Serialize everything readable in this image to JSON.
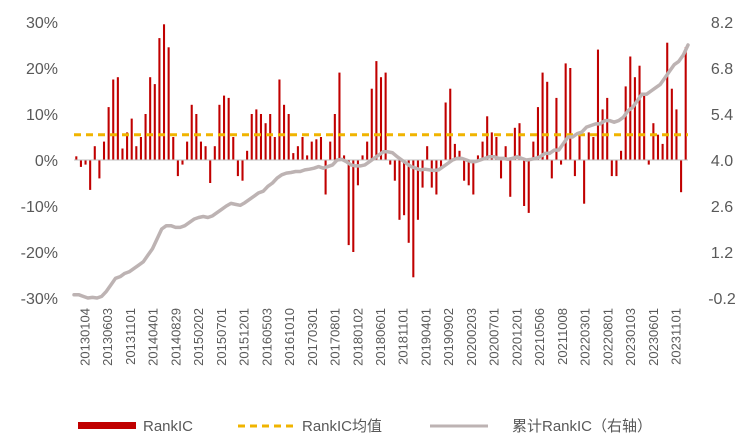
{
  "chart_data": {
    "type": "bar",
    "title": "",
    "colors": {
      "bar": "#c00000",
      "mean_line": "#f0b400",
      "cum_line": "#bdb3b3",
      "tick_text": "#595959",
      "axis": "#bfbfbf"
    },
    "y_left": {
      "range": [
        -30,
        30
      ],
      "ticks": [
        30,
        20,
        10,
        0,
        -10,
        -20,
        -30
      ],
      "tick_labels": [
        "30%",
        "20%",
        "10%",
        "0%",
        "-10%",
        "-20%",
        "-30%"
      ]
    },
    "y_right": {
      "range": [
        -0.2,
        8.2
      ],
      "ticks": [
        8.2,
        6.8,
        5.4,
        4.0,
        2.6,
        1.2,
        -0.2
      ],
      "tick_labels": [
        "8.2",
        "6.8",
        "5.4",
        "4.0",
        "2.6",
        "1.2",
        "-0.2"
      ]
    },
    "x_tick_labels": [
      "20130104",
      "20130603",
      "20131101",
      "20140401",
      "20140829",
      "20150202",
      "20150701",
      "20151201",
      "20160503",
      "20161010",
      "20170301",
      "20170801",
      "20180102",
      "20180601",
      "20181101",
      "20190401",
      "20190902",
      "20200203",
      "20200701",
      "20201201",
      "20210506",
      "20211008",
      "20220301",
      "20220801",
      "20230103",
      "20230601",
      "20231101"
    ],
    "series": [
      {
        "name": "RankIC",
        "type": "bar",
        "values": [
          0.8,
          -1.5,
          -1.0,
          -6.5,
          3.0,
          -4.0,
          4.0,
          11.5,
          17.5,
          18.0,
          2.5,
          6.0,
          9.0,
          3.0,
          5.0,
          10.0,
          18.0,
          16.5,
          26.5,
          29.5,
          24.5,
          5.0,
          -3.5,
          -1.0,
          4.0,
          12.0,
          10.0,
          4.0,
          3.0,
          -5.0,
          3.0,
          12.0,
          14.0,
          13.5,
          5.0,
          -3.5,
          -4.5,
          2.0,
          10.0,
          11.0,
          10.0,
          8.0,
          10.0,
          5.0,
          17.5,
          12.0,
          10.0,
          1.5,
          3.0,
          5.0,
          1.0,
          4.0,
          4.5,
          5.0,
          -7.5,
          4.0,
          10.0,
          19.0,
          1.0,
          -18.5,
          -20.0,
          -5.5,
          1.0,
          4.0,
          15.5,
          21.5,
          18.0,
          19.0,
          -1.0,
          -4.5,
          -13.0,
          -12.0,
          -18.0,
          -25.5,
          -13.0,
          -6.0,
          3.0,
          -6.0,
          -7.5,
          -2.0,
          12.5,
          15.5,
          3.5,
          2.0,
          -4.5,
          -5.5,
          -7.5,
          1.0,
          4.0,
          9.5,
          6.0,
          5.0,
          -4.0,
          3.0,
          -8.0,
          7.0,
          8.0,
          -10.0,
          -11.5,
          4.0,
          11.5,
          19.0,
          17.0,
          -4.0,
          13.5,
          -1.0,
          21.0,
          20.0,
          -3.5,
          6.0,
          -9.5,
          6.0,
          5.0,
          24.0,
          11.0,
          13.5,
          -3.5,
          -3.5,
          2.0,
          16.0,
          22.5,
          18.0,
          20.5,
          14.0,
          -1.0,
          8.0,
          5.5,
          3.5,
          25.5,
          15.5,
          11.0,
          -7.0,
          24.5
        ]
      },
      {
        "name": "RankIC均值",
        "type": "line",
        "axis": "left",
        "constant": 5.5
      },
      {
        "name": "累计RankIC（右轴）",
        "type": "line",
        "axis": "right",
        "values": [
          -0.1,
          -0.1,
          -0.15,
          -0.2,
          -0.18,
          -0.2,
          -0.15,
          0.0,
          0.2,
          0.4,
          0.45,
          0.55,
          0.6,
          0.7,
          0.8,
          0.9,
          1.1,
          1.3,
          1.6,
          1.9,
          2.0,
          2.0,
          1.95,
          1.95,
          2.0,
          2.1,
          2.2,
          2.25,
          2.28,
          2.25,
          2.3,
          2.4,
          2.5,
          2.6,
          2.68,
          2.65,
          2.62,
          2.7,
          2.8,
          2.9,
          3.0,
          3.05,
          3.2,
          3.3,
          3.45,
          3.55,
          3.6,
          3.62,
          3.65,
          3.65,
          3.7,
          3.72,
          3.75,
          3.8,
          3.75,
          3.8,
          3.85,
          4.0,
          4.02,
          3.95,
          3.85,
          3.82,
          3.82,
          3.85,
          3.95,
          4.05,
          4.15,
          4.25,
          4.25,
          4.22,
          4.1,
          4.0,
          3.9,
          3.8,
          3.75,
          3.7,
          3.72,
          3.7,
          3.68,
          3.7,
          3.8,
          3.9,
          4.0,
          4.05,
          4.05,
          4.0,
          3.95,
          3.95,
          4.0,
          4.05,
          4.1,
          4.1,
          4.05,
          4.05,
          4.02,
          4.05,
          4.1,
          4.05,
          4.0,
          4.02,
          4.05,
          4.1,
          4.2,
          4.2,
          4.3,
          4.3,
          4.5,
          4.7,
          4.7,
          4.8,
          4.85,
          5.0,
          5.05,
          5.1,
          5.1,
          5.2,
          5.2,
          5.15,
          5.2,
          5.3,
          5.5,
          5.6,
          5.8,
          6.0,
          6.0,
          6.1,
          6.2,
          6.3,
          6.5,
          6.7,
          6.9,
          7.0,
          7.2,
          7.5
        ]
      }
    ],
    "legend": {
      "position": "bottom",
      "items": [
        {
          "label": "RankIC",
          "style": "bar"
        },
        {
          "label": "RankIC均值",
          "style": "dashed"
        },
        {
          "label": "累计RankIC（右轴）",
          "style": "line"
        }
      ]
    }
  }
}
